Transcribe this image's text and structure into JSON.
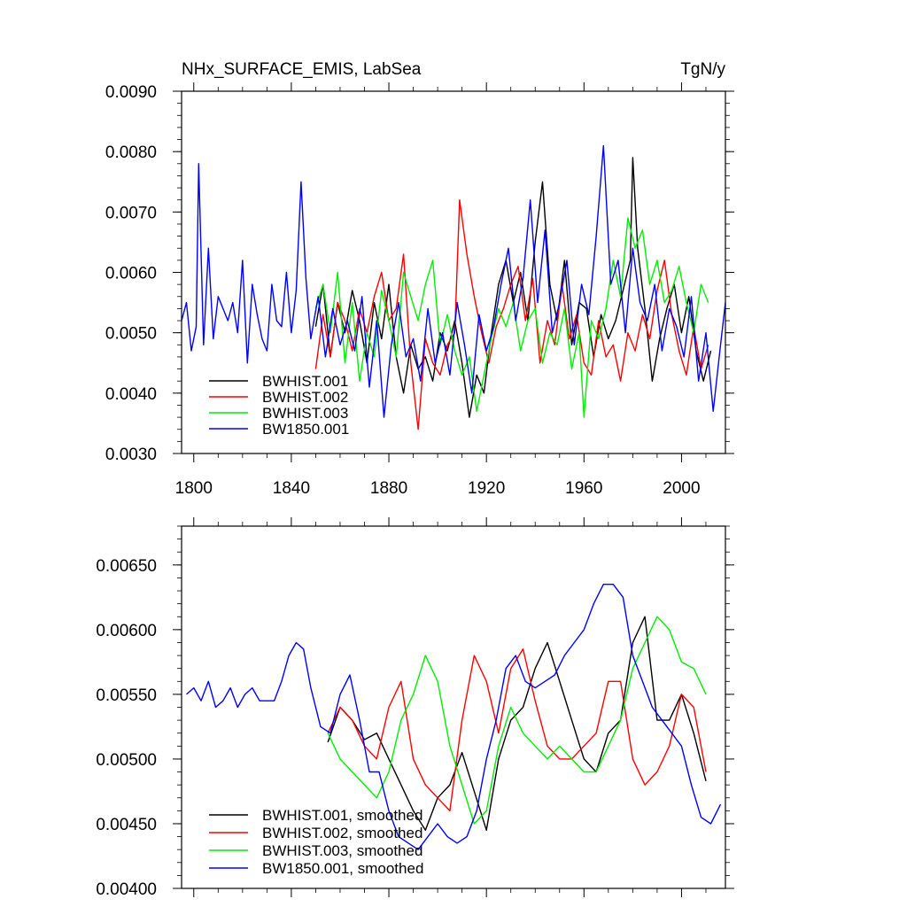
{
  "chart_data": [
    {
      "type": "line",
      "title": "NHx_SURFACE_EMIS, LabSea",
      "units": "TgN/y",
      "xlim": [
        1795,
        2018
      ],
      "ylim": [
        0.003,
        0.009
      ],
      "xticks": [
        {
          "value": 1800,
          "label": "1800"
        },
        {
          "value": 1840,
          "label": "1840"
        },
        {
          "value": 1880,
          "label": "1880"
        },
        {
          "value": 1920,
          "label": "1920"
        },
        {
          "value": 1960,
          "label": "1960"
        },
        {
          "value": 2000,
          "label": "2000"
        }
      ],
      "yticks": [
        {
          "value": 0.003,
          "label": "0.0030"
        },
        {
          "value": 0.004,
          "label": "0.0040"
        },
        {
          "value": 0.005,
          "label": "0.0050"
        },
        {
          "value": 0.006,
          "label": "0.0060"
        },
        {
          "value": 0.007,
          "label": "0.0070"
        },
        {
          "value": 0.008,
          "label": "0.0080"
        },
        {
          "value": 0.009,
          "label": "0.0090"
        }
      ],
      "legend_position": "bottom-left",
      "series": [
        {
          "name": "BWHIST.001",
          "color": "#000000",
          "x": [
            1850,
            1853,
            1856,
            1859,
            1862,
            1865,
            1868,
            1871,
            1874,
            1877,
            1880,
            1883,
            1886,
            1889,
            1892,
            1895,
            1898,
            1901,
            1904,
            1907,
            1910,
            1913,
            1916,
            1919,
            1922,
            1925,
            1928,
            1931,
            1934,
            1937,
            1940,
            1943,
            1946,
            1949,
            1952,
            1955,
            1958,
            1961,
            1964,
            1967,
            1970,
            1973,
            1976,
            1979,
            1980,
            1982,
            1985,
            1988,
            1991,
            1994,
            1997,
            2000,
            2003,
            2006,
            2009,
            2012
          ],
          "y": [
            0.0051,
            0.0058,
            0.0046,
            0.0055,
            0.005,
            0.0057,
            0.0052,
            0.0045,
            0.0055,
            0.0049,
            0.0058,
            0.0046,
            0.004,
            0.0048,
            0.0044,
            0.0046,
            0.0042,
            0.005,
            0.0047,
            0.0052,
            0.0045,
            0.0036,
            0.0043,
            0.004,
            0.005,
            0.0058,
            0.0062,
            0.0055,
            0.006,
            0.0052,
            0.0065,
            0.0075,
            0.0058,
            0.0052,
            0.0062,
            0.0048,
            0.0055,
            0.0054,
            0.0046,
            0.0053,
            0.0049,
            0.0052,
            0.0057,
            0.0062,
            0.0079,
            0.0064,
            0.0054,
            0.0042,
            0.0049,
            0.0054,
            0.0058,
            0.005,
            0.0056,
            0.0047,
            0.0042,
            0.0047
          ]
        },
        {
          "name": "BWHIST.002",
          "color": "#ff0000",
          "x": [
            1850,
            1853,
            1856,
            1859,
            1862,
            1865,
            1868,
            1871,
            1874,
            1877,
            1880,
            1883,
            1886,
            1889,
            1892,
            1895,
            1898,
            1901,
            1904,
            1907,
            1909,
            1912,
            1915,
            1918,
            1921,
            1924,
            1927,
            1930,
            1933,
            1936,
            1939,
            1942,
            1945,
            1948,
            1951,
            1954,
            1957,
            1960,
            1963,
            1966,
            1969,
            1972,
            1975,
            1978,
            1981,
            1984,
            1987,
            1990,
            1993,
            1996,
            1999,
            2002,
            2005,
            2008,
            2011
          ],
          "y": [
            0.0044,
            0.0053,
            0.0046,
            0.0055,
            0.0052,
            0.0047,
            0.0054,
            0.005,
            0.0056,
            0.006,
            0.0052,
            0.0054,
            0.0063,
            0.0045,
            0.0034,
            0.0049,
            0.0045,
            0.0043,
            0.0048,
            0.005,
            0.0072,
            0.0063,
            0.0056,
            0.005,
            0.0045,
            0.0051,
            0.0054,
            0.0058,
            0.0061,
            0.0052,
            0.0059,
            0.0045,
            0.0052,
            0.0048,
            0.0058,
            0.0049,
            0.0053,
            0.0045,
            0.0043,
            0.0052,
            0.0046,
            0.0048,
            0.0042,
            0.005,
            0.0047,
            0.0053,
            0.0049,
            0.0057,
            0.0062,
            0.0053,
            0.0047,
            0.0043,
            0.0051,
            0.0044,
            0.0048
          ]
        },
        {
          "name": "BWHIST.003",
          "color": "#00ee00",
          "x": [
            1850,
            1853,
            1856,
            1859,
            1862,
            1865,
            1868,
            1871,
            1874,
            1877,
            1880,
            1883,
            1886,
            1889,
            1892,
            1895,
            1898,
            1901,
            1904,
            1907,
            1910,
            1913,
            1916,
            1919,
            1922,
            1925,
            1928,
            1931,
            1934,
            1937,
            1940,
            1943,
            1946,
            1949,
            1952,
            1955,
            1958,
            1960,
            1963,
            1966,
            1969,
            1972,
            1975,
            1978,
            1981,
            1984,
            1987,
            1990,
            1993,
            1996,
            1999,
            2002,
            2005,
            2008,
            2011
          ],
          "y": [
            0.0054,
            0.0058,
            0.005,
            0.006,
            0.0045,
            0.0055,
            0.0042,
            0.005,
            0.0046,
            0.0057,
            0.0052,
            0.0046,
            0.006,
            0.0056,
            0.0052,
            0.0058,
            0.0062,
            0.0048,
            0.0053,
            0.0047,
            0.0043,
            0.0046,
            0.0037,
            0.0043,
            0.0049,
            0.0054,
            0.0051,
            0.0055,
            0.0047,
            0.0052,
            0.0054,
            0.0045,
            0.005,
            0.0048,
            0.0054,
            0.0044,
            0.005,
            0.0036,
            0.0052,
            0.0049,
            0.0054,
            0.0062,
            0.0056,
            0.0069,
            0.0064,
            0.0067,
            0.0058,
            0.0062,
            0.0055,
            0.0057,
            0.0061,
            0.0055,
            0.005,
            0.0058,
            0.0055
          ]
        },
        {
          "name": "BW1850.001",
          "color": "#0000ff",
          "x": [
            1795,
            1797,
            1799,
            1801,
            1802,
            1804,
            1806,
            1808,
            1810,
            1812,
            1814,
            1816,
            1818,
            1820,
            1822,
            1824,
            1826,
            1828,
            1830,
            1832,
            1834,
            1836,
            1838,
            1840,
            1842,
            1844,
            1846,
            1848,
            1851,
            1854,
            1857,
            1860,
            1863,
            1866,
            1869,
            1872,
            1875,
            1878,
            1881,
            1884,
            1887,
            1890,
            1893,
            1896,
            1899,
            1902,
            1905,
            1908,
            1911,
            1914,
            1917,
            1920,
            1923,
            1926,
            1929,
            1932,
            1935,
            1938,
            1941,
            1944,
            1947,
            1950,
            1953,
            1956,
            1959,
            1962,
            1965,
            1968,
            1971,
            1974,
            1977,
            1980,
            1983,
            1986,
            1989,
            1992,
            1995,
            1998,
            2001,
            2004,
            2007,
            2010,
            2013,
            2016,
            2018
          ],
          "y": [
            0.0052,
            0.0055,
            0.0047,
            0.0051,
            0.0078,
            0.0048,
            0.0064,
            0.0049,
            0.0056,
            0.0054,
            0.0052,
            0.0055,
            0.005,
            0.0062,
            0.0045,
            0.0058,
            0.0053,
            0.0049,
            0.0047,
            0.0058,
            0.0052,
            0.0051,
            0.006,
            0.005,
            0.0057,
            0.0075,
            0.0059,
            0.0049,
            0.0056,
            0.0046,
            0.0054,
            0.0048,
            0.0052,
            0.0047,
            0.0056,
            0.0041,
            0.0052,
            0.0036,
            0.0048,
            0.0055,
            0.0046,
            0.0049,
            0.0042,
            0.0054,
            0.0045,
            0.005,
            0.0043,
            0.0055,
            0.0048,
            0.004,
            0.0053,
            0.0047,
            0.0051,
            0.0058,
            0.0064,
            0.0052,
            0.0059,
            0.0072,
            0.0055,
            0.0067,
            0.005,
            0.0055,
            0.0062,
            0.0048,
            0.0058,
            0.0053,
            0.0066,
            0.0081,
            0.0058,
            0.0062,
            0.005,
            0.0064,
            0.0055,
            0.0052,
            0.0058,
            0.0047,
            0.0054,
            0.0051,
            0.0046,
            0.0056,
            0.0042,
            0.005,
            0.0037,
            0.0048,
            0.0055
          ]
        }
      ]
    },
    {
      "type": "line",
      "title": "",
      "xlim": [
        1795,
        2018
      ],
      "ylim": [
        0.004,
        0.0068
      ],
      "xticks": [
        {
          "value": 1800,
          "label": ""
        },
        {
          "value": 1840,
          "label": ""
        },
        {
          "value": 1880,
          "label": ""
        },
        {
          "value": 1920,
          "label": ""
        },
        {
          "value": 1960,
          "label": ""
        },
        {
          "value": 2000,
          "label": ""
        }
      ],
      "yticks": [
        {
          "value": 0.004,
          "label": "0.00400"
        },
        {
          "value": 0.0045,
          "label": "0.00450"
        },
        {
          "value": 0.005,
          "label": "0.00500"
        },
        {
          "value": 0.0055,
          "label": "0.00550"
        },
        {
          "value": 0.006,
          "label": "0.00600"
        },
        {
          "value": 0.0065,
          "label": "0.00650"
        }
      ],
      "legend_position": "bottom-left",
      "series": [
        {
          "name": "BWHIST.001, smoothed",
          "color": "#000000",
          "x": [
            1855,
            1860,
            1865,
            1870,
            1875,
            1880,
            1885,
            1890,
            1895,
            1900,
            1905,
            1910,
            1915,
            1920,
            1925,
            1930,
            1935,
            1940,
            1945,
            1950,
            1955,
            1960,
            1965,
            1970,
            1975,
            1980,
            1985,
            1990,
            1995,
            2000,
            2005,
            2010
          ],
          "y": [
            0.00513,
            0.0054,
            0.0053,
            0.00515,
            0.0052,
            0.005,
            0.0048,
            0.0046,
            0.00445,
            0.0047,
            0.0048,
            0.00505,
            0.00475,
            0.00445,
            0.005,
            0.0053,
            0.0054,
            0.0057,
            0.0059,
            0.0056,
            0.0053,
            0.005,
            0.0049,
            0.0052,
            0.0053,
            0.0059,
            0.0061,
            0.0053,
            0.0053,
            0.0055,
            0.0052,
            0.00483
          ]
        },
        {
          "name": "BWHIST.002, smoothed",
          "color": "#ff0000",
          "x": [
            1855,
            1860,
            1865,
            1870,
            1875,
            1880,
            1885,
            1890,
            1895,
            1900,
            1905,
            1910,
            1915,
            1920,
            1925,
            1930,
            1935,
            1940,
            1945,
            1950,
            1955,
            1960,
            1965,
            1970,
            1975,
            1980,
            1985,
            1990,
            1995,
            2000,
            2005,
            2010
          ],
          "y": [
            0.0052,
            0.0054,
            0.0053,
            0.0051,
            0.005,
            0.0054,
            0.0056,
            0.005,
            0.0048,
            0.0047,
            0.0046,
            0.0053,
            0.0058,
            0.0056,
            0.0052,
            0.0057,
            0.00585,
            0.00545,
            0.0051,
            0.005,
            0.005,
            0.0051,
            0.0052,
            0.0056,
            0.0056,
            0.005,
            0.0048,
            0.0049,
            0.0051,
            0.0055,
            0.0054,
            0.0049
          ]
        },
        {
          "name": "BWHIST.003, smoothed",
          "color": "#00ee00",
          "x": [
            1855,
            1860,
            1865,
            1870,
            1875,
            1880,
            1885,
            1890,
            1895,
            1900,
            1905,
            1910,
            1915,
            1920,
            1925,
            1930,
            1935,
            1940,
            1945,
            1950,
            1955,
            1960,
            1965,
            1970,
            1975,
            1980,
            1985,
            1990,
            1995,
            2000,
            2005,
            2010
          ],
          "y": [
            0.0052,
            0.005,
            0.0049,
            0.0048,
            0.0047,
            0.0049,
            0.0053,
            0.0055,
            0.0058,
            0.0056,
            0.0051,
            0.0048,
            0.0045,
            0.0046,
            0.0051,
            0.0054,
            0.0052,
            0.0051,
            0.005,
            0.0051,
            0.005,
            0.0049,
            0.0049,
            0.0051,
            0.0053,
            0.0057,
            0.0059,
            0.0061,
            0.006,
            0.00575,
            0.0057,
            0.0055
          ]
        },
        {
          "name": "BW1850.001, smoothed",
          "color": "#0000ff",
          "x": [
            1797,
            1800,
            1803,
            1806,
            1809,
            1812,
            1815,
            1818,
            1821,
            1824,
            1827,
            1830,
            1833,
            1836,
            1839,
            1842,
            1845,
            1848,
            1852,
            1856,
            1860,
            1864,
            1868,
            1872,
            1876,
            1880,
            1884,
            1888,
            1892,
            1896,
            1900,
            1904,
            1908,
            1912,
            1916,
            1920,
            1924,
            1928,
            1932,
            1936,
            1940,
            1944,
            1948,
            1952,
            1956,
            1960,
            1964,
            1968,
            1972,
            1976,
            1980,
            1984,
            1988,
            1992,
            1996,
            2000,
            2004,
            2008,
            2012,
            2016
          ],
          "y": [
            0.0055,
            0.00555,
            0.00545,
            0.0056,
            0.0054,
            0.00545,
            0.00555,
            0.0054,
            0.0055,
            0.00555,
            0.00545,
            0.00545,
            0.00545,
            0.0056,
            0.0058,
            0.0059,
            0.00585,
            0.00555,
            0.00525,
            0.0052,
            0.0055,
            0.00565,
            0.0053,
            0.0049,
            0.0049,
            0.0046,
            0.0044,
            0.00435,
            0.0043,
            0.0044,
            0.0045,
            0.0044,
            0.00435,
            0.0044,
            0.0046,
            0.005,
            0.0053,
            0.0057,
            0.0058,
            0.0056,
            0.00555,
            0.0056,
            0.00565,
            0.0058,
            0.0059,
            0.006,
            0.0062,
            0.00635,
            0.00635,
            0.00625,
            0.0058,
            0.0056,
            0.0054,
            0.0053,
            0.0052,
            0.0051,
            0.0048,
            0.00455,
            0.0045,
            0.00465
          ]
        }
      ]
    }
  ]
}
